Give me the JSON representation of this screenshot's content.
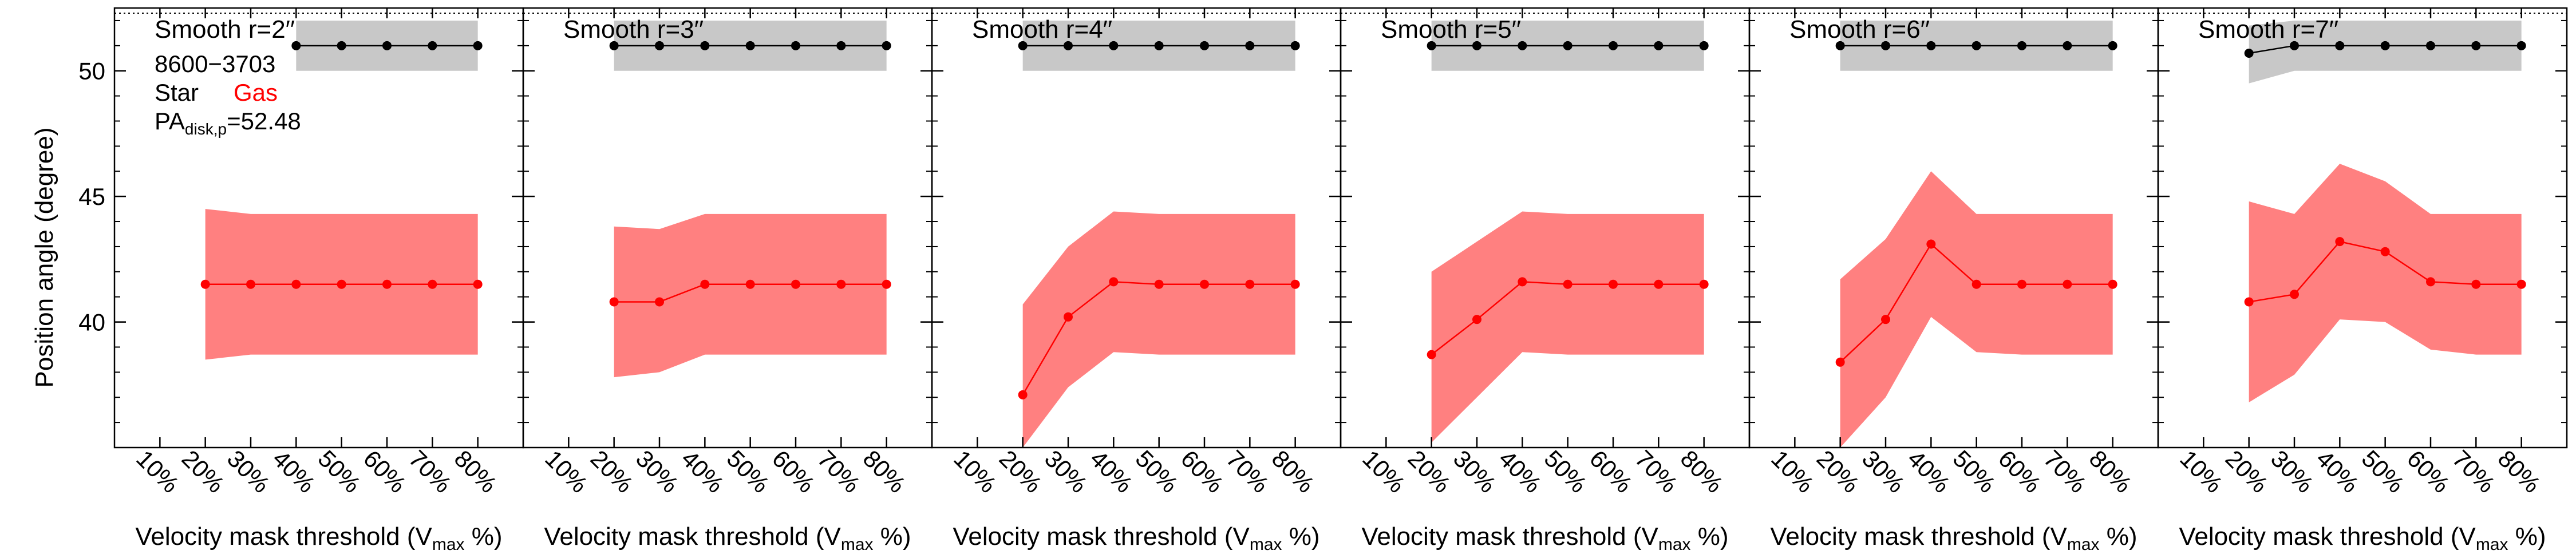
{
  "figure": {
    "ylabel": "Position angle (degree)",
    "galaxy_id": "8600−3703",
    "legend_star": "Star",
    "legend_gas": "Gas",
    "pa_disk_prefix": "PA",
    "pa_disk_sub": "disk,p",
    "pa_disk_value": "=52.48",
    "xlabel_prefix": "Velocity mask threshold (V",
    "xlabel_sub": "max",
    "xlabel_suffix": " %)"
  },
  "colors": {
    "star": "#000000",
    "star_band": "#c8c8c8",
    "gas": "#ff0000",
    "gas_band": "#ff8080"
  },
  "chart_data": {
    "type": "line",
    "x_categories": [
      "10%",
      "20%",
      "30%",
      "40%",
      "50%",
      "60%",
      "70%",
      "80%"
    ],
    "ylim": [
      35,
      52.5
    ],
    "yticks": [
      40,
      45,
      50
    ],
    "panels": [
      {
        "title": "Smooth r=2′′",
        "star": [
          null,
          null,
          null,
          51.0,
          51.0,
          51.0,
          51.0,
          51.0
        ],
        "star_lo": [
          null,
          null,
          null,
          50.0,
          50.0,
          50.0,
          50.0,
          50.0
        ],
        "star_hi": [
          null,
          null,
          null,
          52.0,
          52.0,
          52.0,
          52.0,
          52.0
        ],
        "gas": [
          null,
          41.5,
          41.5,
          41.5,
          41.5,
          41.5,
          41.5,
          41.5
        ],
        "gas_lo": [
          null,
          38.5,
          38.7,
          38.7,
          38.7,
          38.7,
          38.7,
          38.7
        ],
        "gas_hi": [
          null,
          44.5,
          44.3,
          44.3,
          44.3,
          44.3,
          44.3,
          44.3
        ]
      },
      {
        "title": "Smooth r=3′′",
        "star": [
          null,
          51.0,
          51.0,
          51.0,
          51.0,
          51.0,
          51.0,
          51.0
        ],
        "star_lo": [
          null,
          50.0,
          50.0,
          50.0,
          50.0,
          50.0,
          50.0,
          50.0
        ],
        "star_hi": [
          null,
          52.0,
          52.0,
          52.0,
          52.0,
          52.0,
          52.0,
          52.0
        ],
        "gas": [
          null,
          40.8,
          40.8,
          41.5,
          41.5,
          41.5,
          41.5,
          41.5
        ],
        "gas_lo": [
          null,
          37.8,
          38.0,
          38.7,
          38.7,
          38.7,
          38.7,
          38.7
        ],
        "gas_hi": [
          null,
          43.8,
          43.7,
          44.3,
          44.3,
          44.3,
          44.3,
          44.3
        ]
      },
      {
        "title": "Smooth r=4′′",
        "star": [
          null,
          51.0,
          51.0,
          51.0,
          51.0,
          51.0,
          51.0,
          51.0
        ],
        "star_lo": [
          null,
          50.0,
          50.0,
          50.0,
          50.0,
          50.0,
          50.0,
          50.0
        ],
        "star_hi": [
          null,
          52.0,
          52.0,
          52.0,
          52.0,
          52.0,
          52.0,
          52.0
        ],
        "gas": [
          null,
          37.1,
          40.2,
          41.6,
          41.5,
          41.5,
          41.5,
          41.5
        ],
        "gas_lo": [
          null,
          35.0,
          37.4,
          38.8,
          38.7,
          38.7,
          38.7,
          38.7
        ],
        "gas_hi": [
          null,
          40.7,
          43.0,
          44.4,
          44.3,
          44.3,
          44.3,
          44.3
        ]
      },
      {
        "title": "Smooth r=5′′",
        "star": [
          null,
          51.0,
          51.0,
          51.0,
          51.0,
          51.0,
          51.0,
          51.0
        ],
        "star_lo": [
          null,
          50.0,
          50.0,
          50.0,
          50.0,
          50.0,
          50.0,
          50.0
        ],
        "star_hi": [
          null,
          52.0,
          52.0,
          52.0,
          52.0,
          52.0,
          52.0,
          52.0
        ],
        "gas": [
          null,
          38.7,
          40.1,
          41.6,
          41.5,
          41.5,
          41.5,
          41.5
        ],
        "gas_lo": [
          null,
          35.2,
          37.0,
          38.8,
          38.7,
          38.7,
          38.7,
          38.7
        ],
        "gas_hi": [
          null,
          42.0,
          43.2,
          44.4,
          44.3,
          44.3,
          44.3,
          44.3
        ]
      },
      {
        "title": "Smooth r=6′′",
        "star": [
          null,
          51.0,
          51.0,
          51.0,
          51.0,
          51.0,
          51.0,
          51.0
        ],
        "star_lo": [
          null,
          50.0,
          50.0,
          50.0,
          50.0,
          50.0,
          50.0,
          50.0
        ],
        "star_hi": [
          null,
          52.0,
          52.0,
          52.0,
          52.0,
          52.0,
          52.0,
          52.0
        ],
        "gas": [
          null,
          38.4,
          40.1,
          43.1,
          41.5,
          41.5,
          41.5,
          41.5
        ],
        "gas_lo": [
          null,
          35.0,
          37.0,
          40.2,
          38.8,
          38.7,
          38.7,
          38.7
        ],
        "gas_hi": [
          null,
          41.7,
          43.3,
          46.0,
          44.3,
          44.3,
          44.3,
          44.3
        ]
      },
      {
        "title": "Smooth r=7′′",
        "star": [
          null,
          50.7,
          51.0,
          51.0,
          51.0,
          51.0,
          51.0,
          51.0
        ],
        "star_lo": [
          null,
          49.5,
          50.0,
          50.0,
          50.0,
          50.0,
          50.0,
          50.0
        ],
        "star_hi": [
          null,
          51.8,
          52.0,
          52.0,
          52.0,
          52.0,
          52.0,
          52.0
        ],
        "gas": [
          null,
          40.8,
          41.1,
          43.2,
          42.8,
          41.6,
          41.5,
          41.5
        ],
        "gas_lo": [
          null,
          36.8,
          37.9,
          40.1,
          40.0,
          38.9,
          38.7,
          38.7
        ],
        "gas_hi": [
          null,
          44.8,
          44.3,
          46.3,
          45.6,
          44.3,
          44.3,
          44.3
        ]
      }
    ]
  }
}
